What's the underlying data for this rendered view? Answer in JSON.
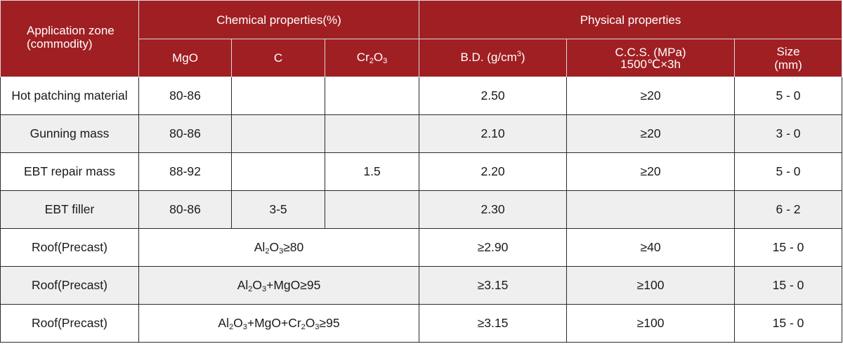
{
  "header": {
    "application_zone": [
      "Application zone",
      "(commodity)"
    ],
    "chemical_properties": "Chemical properties(%)",
    "physical_properties": "Physical properties",
    "mgo": "MgO",
    "c": "C",
    "cr2o3": {
      "base": "Cr",
      "sub1": "2",
      "mid": "O",
      "sub2": "3"
    },
    "bd": {
      "text": "B.D. (g/cm",
      "sup": "3",
      "close": ")"
    },
    "ccs": [
      "C.C.S. (MPa)",
      "1500℃×3h"
    ],
    "size": [
      "Size",
      "(mm)"
    ]
  },
  "rows": [
    {
      "application": "Hot patching material",
      "mgo": "80-86",
      "c": "",
      "cr2o3": "",
      "bd": "2.50",
      "ccs": "≥20",
      "size": "5 - 0"
    },
    {
      "application": "Gunning mass",
      "mgo": "80-86",
      "c": "",
      "cr2o3": "",
      "bd": "2.10",
      "ccs": "≥20",
      "size": "3 - 0"
    },
    {
      "application": "EBT repair mass",
      "mgo": "88-92",
      "c": "",
      "cr2o3": "1.5",
      "bd": "2.20",
      "ccs": "≥20",
      "size": "5 - 0"
    },
    {
      "application": "EBT filler",
      "mgo": "80-86",
      "c": "3-5",
      "cr2o3": "",
      "bd": "2.30",
      "ccs": "",
      "size": "6 - 2"
    }
  ],
  "merged_rows": [
    {
      "application": "Roof(Precast)",
      "chemical": {
        "parts": [
          "Al",
          "2",
          "O",
          "3",
          "≥80"
        ]
      },
      "bd": "≥2.90",
      "ccs": "≥40",
      "size": "15 - 0"
    },
    {
      "application": "Roof(Precast)",
      "chemical": {
        "parts": [
          "Al",
          "2",
          "O",
          "3",
          "+MgO≥95"
        ]
      },
      "bd": "≥3.15",
      "ccs": "≥100",
      "size": "15 - 0"
    },
    {
      "application": "Roof(Precast)",
      "chemical": {
        "parts": [
          "Al",
          "2",
          "O",
          "3",
          "+MgO+Cr",
          "2",
          "O",
          "3",
          "≥95"
        ]
      },
      "bd": "≥3.15",
      "ccs": "≥100",
      "size": "15 - 0"
    }
  ]
}
